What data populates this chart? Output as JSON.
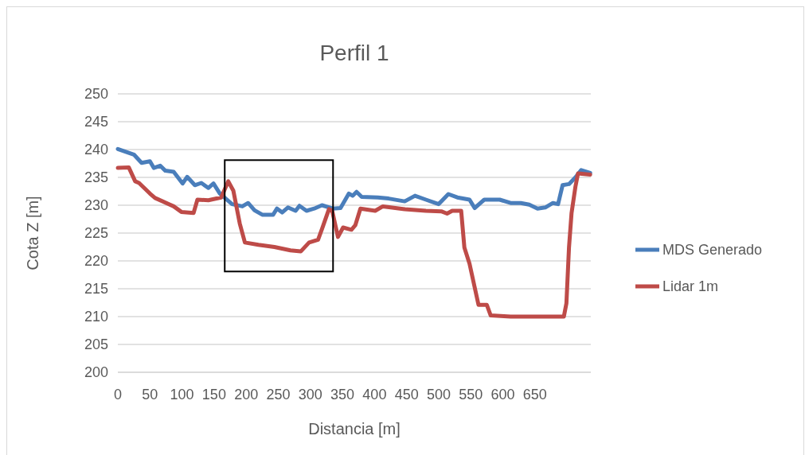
{
  "chart_data": {
    "type": "line",
    "title": "Perfil 1",
    "xlabel": "Distancia [m]",
    "ylabel": "Cota Z [m]",
    "xlim": [
      0,
      737
    ],
    "xticks": [
      0,
      50,
      100,
      150,
      200,
      250,
      300,
      350,
      400,
      450,
      500,
      550,
      600,
      650
    ],
    "ylim": [
      200,
      250
    ],
    "yticks": [
      200,
      205,
      210,
      215,
      220,
      225,
      230,
      235,
      240,
      245,
      250
    ],
    "grid": "y",
    "legend": "right",
    "line_style": "solid",
    "marker": "none",
    "series": [
      {
        "name": "MDS Generado",
        "color": "#4a7ebb",
        "x": [
          0,
          25,
          37,
          50,
          56,
          66,
          74,
          87,
          101,
          108,
          120,
          130,
          141,
          149,
          159,
          178,
          194,
          203,
          213,
          225,
          242,
          248,
          256,
          265,
          277,
          283,
          294,
          306,
          318,
          335,
          347,
          360,
          366,
          372,
          380,
          405,
          422,
          447,
          463,
          480,
          500,
          515,
          529,
          548,
          556,
          571,
          595,
          612,
          628,
          641,
          654,
          666,
          678,
          686,
          693,
          703,
          713,
          722,
          736
        ],
        "values": [
          240.1,
          239.1,
          237.6,
          237.9,
          236.7,
          237.1,
          236.2,
          236,
          233.9,
          235.1,
          233.6,
          234,
          233.1,
          233.9,
          232.1,
          230.2,
          229.8,
          230.4,
          229.1,
          228.3,
          228.3,
          229.4,
          228.7,
          229.6,
          229,
          229.9,
          229,
          229.4,
          230,
          229.4,
          229.5,
          232.1,
          231.7,
          232.4,
          231.5,
          231.4,
          231.2,
          230.7,
          231.7,
          231,
          230.2,
          232,
          231.4,
          231,
          229.5,
          231,
          231,
          230.4,
          230.4,
          230.1,
          229.4,
          229.6,
          230.4,
          230.2,
          233.6,
          233.8,
          235,
          236.3,
          235.8
        ]
      },
      {
        "name": "Lidar 1m",
        "color": "#be4b48",
        "x": [
          0,
          17,
          27,
          33,
          50,
          58,
          87,
          99,
          118,
          124,
          141,
          161,
          172,
          180,
          190,
          198,
          219,
          244,
          269,
          285,
          298,
          312,
          318,
          329,
          334,
          343,
          351,
          364,
          370,
          378,
          401,
          413,
          447,
          480,
          504,
          513,
          521,
          535,
          540,
          548,
          562,
          575,
          581,
          612,
          695,
          699,
          703,
          707,
          713,
          717,
          736
        ],
        "values": [
          236.7,
          236.8,
          234.3,
          234,
          232.1,
          231.3,
          229.8,
          228.8,
          228.6,
          231,
          230.9,
          231.4,
          234.3,
          232.6,
          226.7,
          223.3,
          222.9,
          222.5,
          221.9,
          221.7,
          223.3,
          223.8,
          225.7,
          229.3,
          229,
          224.3,
          226,
          225.6,
          226.4,
          229.4,
          229,
          229.8,
          229.3,
          229,
          228.9,
          228.5,
          229,
          229,
          222.4,
          219.5,
          212.1,
          212.1,
          210.2,
          210,
          210,
          212.4,
          222.4,
          228.6,
          233.3,
          235.7,
          235.5
        ]
      }
    ]
  }
}
